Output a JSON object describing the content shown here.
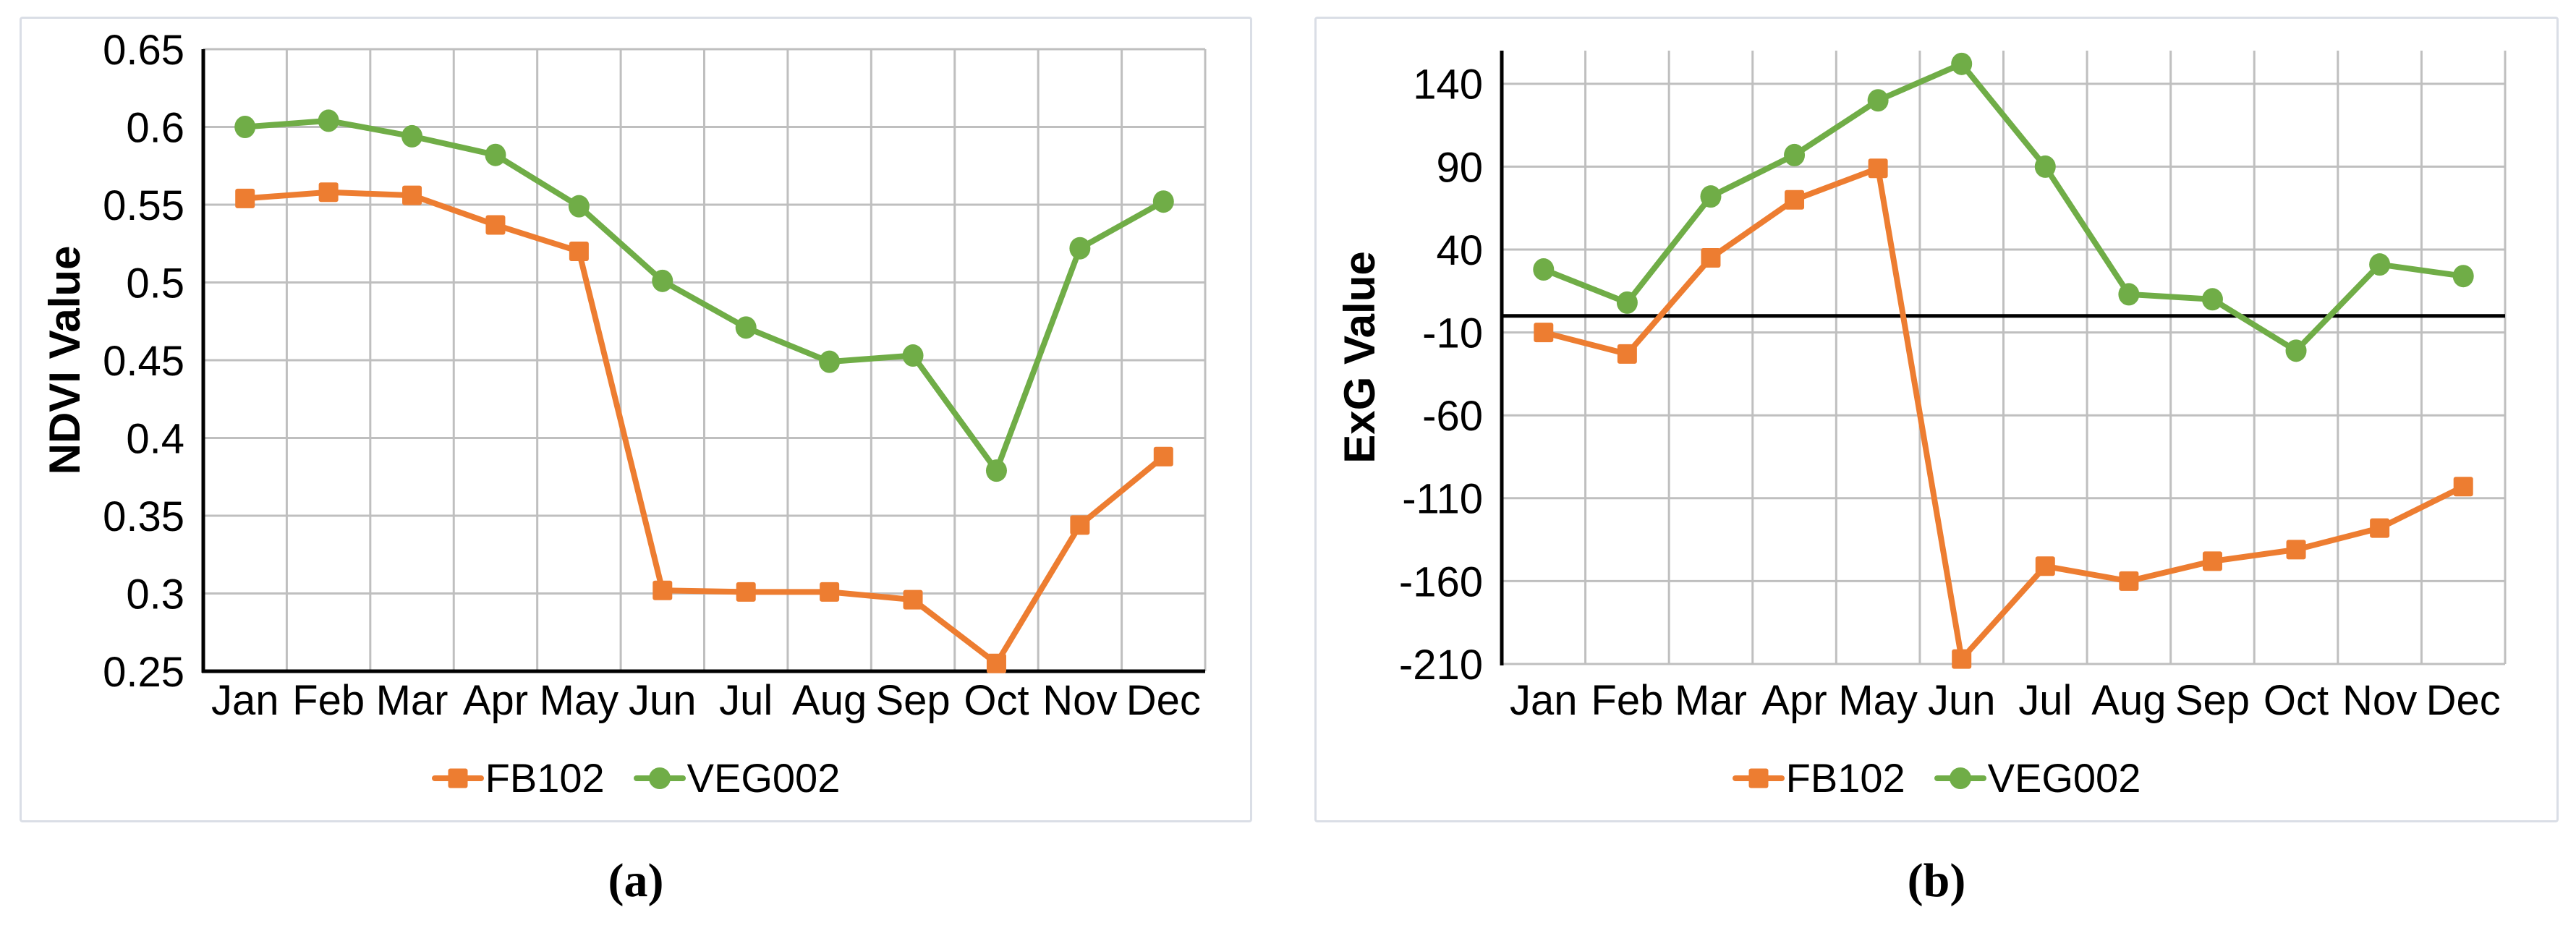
{
  "figure": {
    "background": "#ffffff",
    "panel_border_color": "#dadee6",
    "panels": [
      {
        "id": "a",
        "caption": "(a)"
      },
      {
        "id": "b",
        "caption": "(b)"
      }
    ]
  },
  "chart_data": [
    {
      "type": "line",
      "title": "",
      "xlabel": "",
      "ylabel": "NDVI Value",
      "legend_position": "bottom",
      "grid": true,
      "grid_color": "#BFBFBF",
      "axis_color": "#000000",
      "text_color": "#000000",
      "ylim": [
        0.25,
        0.65
      ],
      "baseline": 0.25,
      "categories": [
        "Jan",
        "Feb",
        "Mar",
        "Apr",
        "May",
        "Jun",
        "Jul",
        "Aug",
        "Sep",
        "Oct",
        "Nov",
        "Dec"
      ],
      "yticks": [
        {
          "value": 0.65,
          "label": "0.65"
        },
        {
          "value": 0.6,
          "label": "0.6"
        },
        {
          "value": 0.55,
          "label": "0.55"
        },
        {
          "value": 0.5,
          "label": "0.5"
        },
        {
          "value": 0.45,
          "label": "0.45"
        },
        {
          "value": 0.4,
          "label": "0.4"
        },
        {
          "value": 0.35,
          "label": "0.35"
        },
        {
          "value": 0.3,
          "label": "0.3"
        },
        {
          "value": 0.25,
          "label": "0.25"
        }
      ],
      "series": [
        {
          "name": "FB102",
          "color": "#ED7D31",
          "marker": "square",
          "values": [
            0.554,
            0.558,
            0.556,
            0.537,
            0.52,
            0.302,
            0.301,
            0.301,
            0.296,
            0.255,
            0.344,
            0.388
          ]
        },
        {
          "name": "VEG002",
          "color": "#70AD47",
          "marker": "circle",
          "values": [
            0.6,
            0.604,
            0.594,
            0.582,
            0.549,
            0.501,
            0.471,
            0.449,
            0.453,
            0.379,
            0.522,
            0.552
          ]
        }
      ]
    },
    {
      "type": "line",
      "title": "",
      "xlabel": "",
      "ylabel": "ExG Value",
      "legend_position": "bottom",
      "grid": true,
      "grid_color": "#BFBFBF",
      "axis_color": "#000000",
      "text_color": "#000000",
      "ylim": [
        -210,
        160
      ],
      "baseline": 0,
      "categories": [
        "Jan",
        "Feb",
        "Mar",
        "Apr",
        "May",
        "Jun",
        "Jul",
        "Aug",
        "Sep",
        "Oct",
        "Nov",
        "Dec"
      ],
      "yticks": [
        {
          "value": 140,
          "label": "140"
        },
        {
          "value": 90,
          "label": "90"
        },
        {
          "value": 40,
          "label": "40"
        },
        {
          "value": -10,
          "label": "-10"
        },
        {
          "value": -60,
          "label": "-60"
        },
        {
          "value": -110,
          "label": "-110"
        },
        {
          "value": -160,
          "label": "-160"
        },
        {
          "value": -210,
          "label": "-210"
        }
      ],
      "series": [
        {
          "name": "FB102",
          "color": "#ED7D31",
          "marker": "square",
          "values": [
            -10,
            -23,
            35,
            70,
            89,
            -207,
            -151,
            -160,
            -148,
            -141,
            -128,
            -103
          ]
        },
        {
          "name": "VEG002",
          "color": "#70AD47",
          "marker": "circle",
          "values": [
            28,
            8,
            72,
            97,
            130,
            152,
            90,
            13,
            10,
            -21,
            31,
            24
          ]
        }
      ]
    }
  ]
}
